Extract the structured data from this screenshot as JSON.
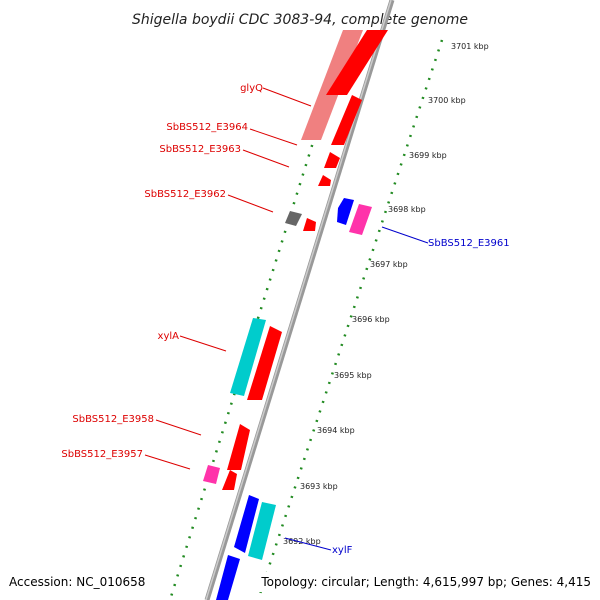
{
  "title": "Shigella boydii CDC 3083-94, complete genome",
  "footer": {
    "accession": "Accession: NC_010658",
    "topology": "Topology: circular; Length: 4,615,997 bp; Genes: 4,415"
  },
  "colors": {
    "forward_gene": "#ff0000",
    "forward_gene_light": "#f08080",
    "reverse_gene": "#0000ff",
    "cyan_feature": "#00cccc",
    "magenta_feature": "#ff33aa",
    "grey_feature": "#666666",
    "tick_marks": "#228b22",
    "backbone": "#888888",
    "forward_label": "#dd0000",
    "reverse_label": "#0000cc"
  },
  "scale_ticks": [
    {
      "kbp": 3701,
      "label": "3701 kbp"
    },
    {
      "kbp": 3700,
      "label": "3700 kbp"
    },
    {
      "kbp": 3699,
      "label": "3699 kbp"
    },
    {
      "kbp": 3698,
      "label": "3698 kbp"
    },
    {
      "kbp": 3697,
      "label": "3697 kbp"
    },
    {
      "kbp": 3696,
      "label": "3696 kbp"
    },
    {
      "kbp": 3695,
      "label": "3695 kbp"
    },
    {
      "kbp": 3694,
      "label": "3694 kbp"
    },
    {
      "kbp": 3693,
      "label": "3693 kbp"
    },
    {
      "kbp": 3692,
      "label": "3692 kbp"
    }
  ],
  "gene_labels": [
    {
      "name": "glyQ",
      "strand": "forward"
    },
    {
      "name": "SbBS512_E3964",
      "strand": "forward"
    },
    {
      "name": "SbBS512_E3963",
      "strand": "forward"
    },
    {
      "name": "SbBS512_E3962",
      "strand": "forward"
    },
    {
      "name": "SbBS512_E3961",
      "strand": "reverse"
    },
    {
      "name": "xylA",
      "strand": "forward"
    },
    {
      "name": "SbBS512_E3958",
      "strand": "forward"
    },
    {
      "name": "SbBS512_E3957",
      "strand": "forward"
    },
    {
      "name": "xylF",
      "strand": "reverse"
    }
  ]
}
